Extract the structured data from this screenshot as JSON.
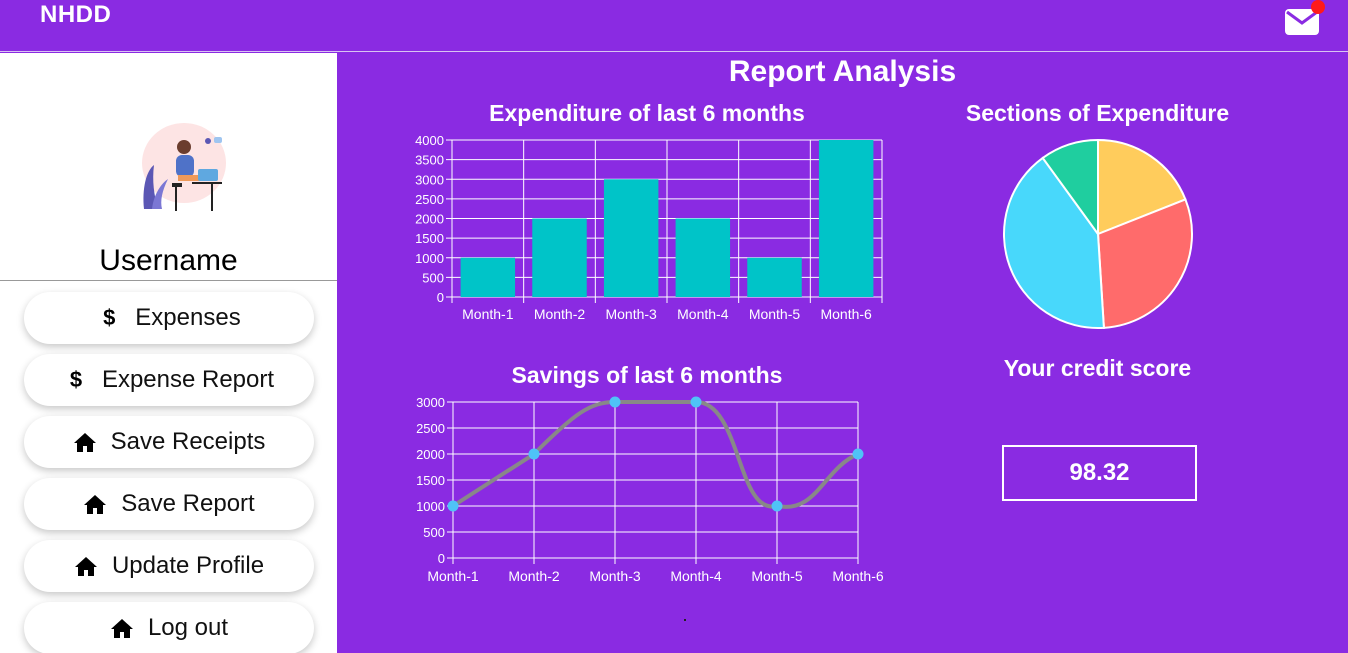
{
  "brand": "NHDD",
  "header": {
    "mail_icon": "mail-icon",
    "notification_color": "#ff1a1a"
  },
  "sidebar": {
    "username": "Username",
    "items": [
      {
        "label": "Expenses",
        "icon": "dollar-icon"
      },
      {
        "label": "Expense Report",
        "icon": "dollar-icon"
      },
      {
        "label": "Save Receipts",
        "icon": "home-icon"
      },
      {
        "label": "Save Report",
        "icon": "home-icon"
      },
      {
        "label": "Update Profile",
        "icon": "home-icon"
      },
      {
        "label": "Log out",
        "icon": "home-icon"
      }
    ]
  },
  "main": {
    "title": "Report Analysis",
    "credit_score_label": "Your credit score",
    "credit_score_value": "98.32"
  },
  "colors": {
    "background": "#8a2be2",
    "bar": "#00c4c8",
    "line": "#888888",
    "point": "#4fc3f7"
  },
  "chart_data": [
    {
      "type": "bar",
      "title": "Expenditure of last 6 months",
      "categories": [
        "Month-1",
        "Month-2",
        "Month-3",
        "Month-4",
        "Month-5",
        "Month-6"
      ],
      "values": [
        1000,
        2000,
        3000,
        2000,
        1000,
        4000
      ],
      "yticks": [
        "0",
        "500",
        "1000",
        "1500",
        "2000",
        "2500",
        "3000",
        "3500",
        "4000"
      ],
      "ylim": [
        0,
        4000
      ],
      "grid": true
    },
    {
      "type": "pie",
      "title": "Sections of Expenditure",
      "values": [
        19,
        30,
        41,
        10
      ],
      "colors": [
        "#ffcc5c",
        "#ff6b6b",
        "#48d8fb",
        "#1fce9f"
      ]
    },
    {
      "type": "line",
      "title": "Savings of last 6 months",
      "categories": [
        "Month-1",
        "Month-2",
        "Month-3",
        "Month-4",
        "Month-5",
        "Month-6"
      ],
      "values": [
        1000,
        2000,
        3000,
        3000,
        1000,
        2000
      ],
      "yticks": [
        "0",
        "500",
        "1000",
        "1500",
        "2000",
        "2500",
        "3000"
      ],
      "ylim": [
        0,
        3000
      ],
      "grid": true
    }
  ]
}
